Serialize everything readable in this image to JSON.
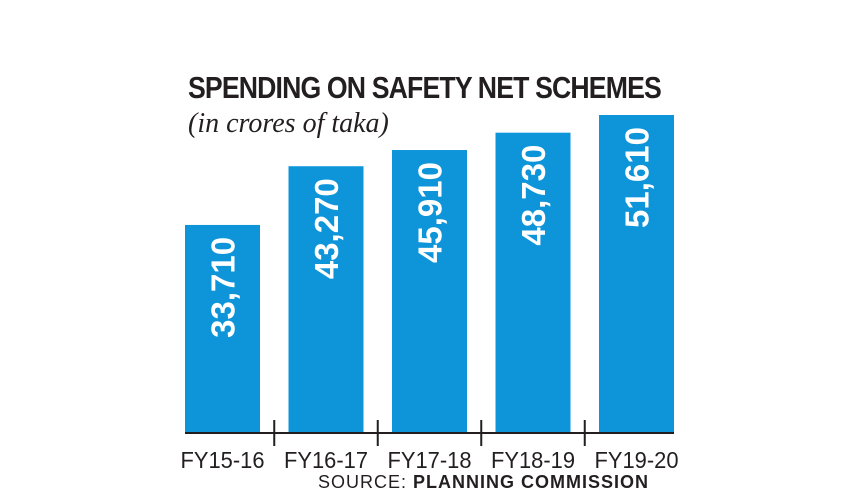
{
  "chart_data": {
    "type": "bar",
    "title": "SPENDING ON SAFETY NET SCHEMES",
    "subtitle": "(in crores of taka)",
    "categories": [
      "FY15-16",
      "FY16-17",
      "FY17-18",
      "FY18-19",
      "FY19-20"
    ],
    "values": [
      33710,
      43270,
      45910,
      48730,
      51610
    ],
    "value_labels": [
      "33,710",
      "43,270",
      "45,910",
      "48,730",
      "51,610"
    ],
    "xlabel": "",
    "ylabel": "",
    "grid": false,
    "bar_color": "#0e95d9",
    "text_color": "#231f20"
  },
  "source": {
    "prefix": "SOURCE: ",
    "name": "PLANNING COMMISSION"
  }
}
